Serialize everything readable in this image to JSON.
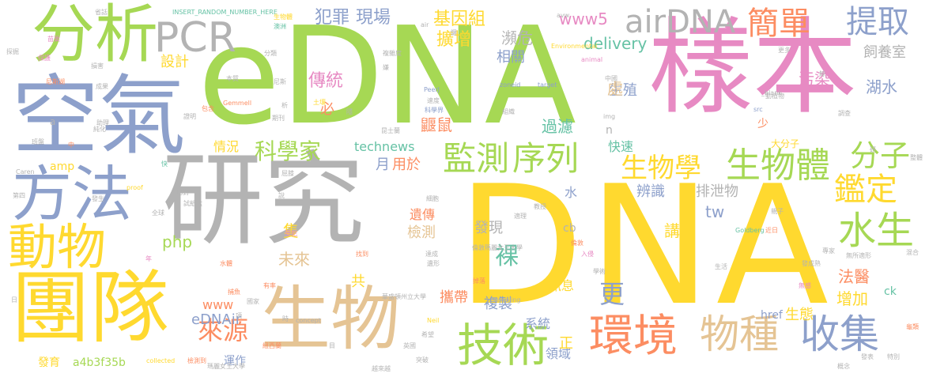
{
  "palette": {
    "green": "#a6d854",
    "pink": "#e78ac3",
    "blue": "#8da0cb",
    "orange": "#fc8d62",
    "teal": "#66c2a5",
    "yellow": "#ffd92f",
    "tan": "#e5c494",
    "gray": "#b3b3b3"
  },
  "words": [
    {
      "text": "DNA",
      "color": "yellow"
    },
    {
      "text": "eDNA",
      "color": "green"
    },
    {
      "text": "樣本",
      "color": "pink"
    },
    {
      "text": "研究",
      "color": "gray"
    },
    {
      "text": "空氣",
      "color": "blue"
    },
    {
      "text": "分析",
      "color": "green"
    },
    {
      "text": "方法",
      "color": "blue"
    },
    {
      "text": "團隊",
      "color": "yellow"
    },
    {
      "text": "生物",
      "color": "tan"
    },
    {
      "text": "動物",
      "color": "yellow"
    },
    {
      "text": "PCR",
      "color": "gray"
    },
    {
      "text": "技術",
      "color": "green"
    },
    {
      "text": "環境",
      "color": "orange"
    },
    {
      "text": "物種",
      "color": "tan"
    },
    {
      "text": "收集",
      "color": "blue"
    },
    {
      "text": "監測",
      "color": "green"
    },
    {
      "text": "序列",
      "color": "green"
    },
    {
      "text": "水生",
      "color": "green"
    },
    {
      "text": "生物體",
      "color": "green"
    },
    {
      "text": "airDNA",
      "color": "gray"
    },
    {
      "text": "簡單",
      "color": "orange"
    },
    {
      "text": "提取",
      "color": "blue"
    },
    {
      "text": "鑑定",
      "color": "yellow"
    },
    {
      "text": "分子",
      "color": "green"
    },
    {
      "text": "科學家",
      "color": "green"
    },
    {
      "text": "生物學",
      "color": "yellow"
    },
    {
      "text": "來源",
      "color": "orange"
    },
    {
      "text": "犯罪",
      "color": "blue"
    },
    {
      "text": "現場",
      "color": "blue"
    },
    {
      "text": "基因組",
      "color": "yellow"
    },
    {
      "text": "www5",
      "color": "pink"
    },
    {
      "text": "delivery",
      "color": "teal"
    },
    {
      "text": "飼養室",
      "color": "gray"
    },
    {
      "text": "湖水",
      "color": "blue"
    },
    {
      "text": "污染",
      "color": "pink"
    },
    {
      "text": "傳統",
      "color": "pink"
    },
    {
      "text": "擴增",
      "color": "yellow"
    },
    {
      "text": "瀕危",
      "color": "gray"
    },
    {
      "text": "相關",
      "color": "blue"
    },
    {
      "text": "設計",
      "color": "yellow"
    },
    {
      "text": "生殖",
      "color": "blue"
    },
    {
      "text": "過濾",
      "color": "teal"
    },
    {
      "text": "鼴鼠",
      "color": "orange"
    },
    {
      "text": "情況",
      "color": "yellow"
    },
    {
      "text": "technews",
      "color": "teal"
    },
    {
      "text": "快速",
      "color": "teal"
    },
    {
      "text": "用於",
      "color": "orange"
    },
    {
      "text": "月",
      "color": "blue"
    },
    {
      "text": "辨識",
      "color": "blue"
    },
    {
      "text": "排泄物",
      "color": "gray"
    },
    {
      "text": "php",
      "color": "green"
    },
    {
      "text": "tw",
      "color": "blue"
    },
    {
      "text": "遺傳",
      "color": "orange"
    },
    {
      "text": "檢測",
      "color": "tan"
    },
    {
      "text": "發現",
      "color": "gray"
    },
    {
      "text": "講",
      "color": "yellow"
    },
    {
      "text": "未來",
      "color": "tan"
    },
    {
      "text": "裸",
      "color": "teal"
    },
    {
      "text": "更",
      "color": "blue"
    },
    {
      "text": "法醫",
      "color": "orange"
    },
    {
      "text": "增加",
      "color": "yellow"
    },
    {
      "text": "生態",
      "color": "yellow"
    },
    {
      "text": "href",
      "color": "blue"
    },
    {
      "text": "ck",
      "color": "teal"
    },
    {
      "text": "www",
      "color": "orange"
    },
    {
      "text": "eDNAir",
      "color": "blue"
    },
    {
      "text": "攜帶",
      "color": "orange"
    },
    {
      "text": "複製",
      "color": "blue"
    },
    {
      "text": "系統",
      "color": "blue"
    },
    {
      "text": "訊息",
      "color": "yellow"
    },
    {
      "text": "領域",
      "color": "blue"
    },
    {
      "text": "運作",
      "color": "blue"
    },
    {
      "text": "發育",
      "color": "yellow"
    },
    {
      "text": "a4b3f35b",
      "color": "green"
    },
    {
      "text": "處",
      "color": "tan"
    },
    {
      "text": "水",
      "color": "blue"
    },
    {
      "text": "必",
      "color": "orange"
    },
    {
      "text": "隻",
      "color": "yellow"
    },
    {
      "text": "共",
      "color": "yellow"
    },
    {
      "text": "正",
      "color": "yellow"
    },
    {
      "text": "少",
      "color": "orange"
    },
    {
      "text": "n",
      "color": "gray"
    },
    {
      "text": "cb",
      "color": "gray"
    },
    {
      "text": "amp",
      "color": "yellow"
    },
    {
      "text": "大分子",
      "color": "yellow"
    },
    {
      "text": "INSERT_RANDOM_NUMBER_HERE",
      "color": "teal"
    },
    {
      "text": "avw",
      "color": "gray"
    },
    {
      "text": "Environmental",
      "color": "yellow"
    },
    {
      "text": "animal",
      "color": "pink"
    },
    {
      "text": "Gemmell",
      "color": "orange"
    },
    {
      "text": "PeerJ",
      "color": "blue"
    },
    {
      "text": "zoneid",
      "color": "blue"
    },
    {
      "text": "target",
      "color": "blue"
    },
    {
      "text": "img",
      "color": "gray"
    },
    {
      "text": "src",
      "color": "blue"
    },
    {
      "text": "_blank",
      "color": "gray"
    },
    {
      "text": "Goldberg",
      "color": "teal"
    },
    {
      "text": "proof",
      "color": "yellow"
    },
    {
      "text": "Caren",
      "color": "gray"
    },
    {
      "text": "sampling",
      "color": "gray"
    },
    {
      "text": "concept",
      "color": "gray"
    },
    {
      "text": "collected",
      "color": "yellow"
    },
    {
      "text": "Neil",
      "color": "yellow"
    },
    {
      "text": "a",
      "color": "gray"
    },
    {
      "text": "華盛頓州立大學",
      "color": "gray"
    },
    {
      "text": "倫敦瑪麗女王大學",
      "color": "gray"
    },
    {
      "text": "瑪麗女王大學",
      "color": "gray"
    },
    {
      "text": "昆士蘭",
      "color": "gray"
    },
    {
      "text": "紐西蘭",
      "color": "orange"
    },
    {
      "text": "越來越",
      "color": "gray"
    },
    {
      "text": "檢測到",
      "color": "orange"
    },
    {
      "text": "澳洲",
      "color": "teal"
    },
    {
      "text": "苗栗",
      "color": "pink"
    },
    {
      "text": "省話",
      "color": "gray"
    },
    {
      "text": "生物體",
      "color": "yellow"
    },
    {
      "text": "全球",
      "color": "gray"
    },
    {
      "text": "比對",
      "color": "gray"
    },
    {
      "text": "試紙盒",
      "color": "gray"
    },
    {
      "text": "助理",
      "color": "gray"
    },
    {
      "text": "罪犯",
      "color": "pink"
    },
    {
      "text": "水體",
      "color": "orange"
    },
    {
      "text": "有率",
      "color": "orange"
    },
    {
      "text": "國家",
      "color": "gray"
    },
    {
      "text": "找到",
      "color": "orange"
    },
    {
      "text": "達成",
      "color": "gray"
    },
    {
      "text": "遺形",
      "color": "gray"
    },
    {
      "text": "突破",
      "color": "gray"
    },
    {
      "text": "希望",
      "color": "gray"
    },
    {
      "text": "英國",
      "color": "gray"
    },
    {
      "text": "目",
      "color": "gray"
    },
    {
      "text": "時",
      "color": "gray"
    },
    {
      "text": "細胞",
      "color": "gray"
    },
    {
      "text": "屈膝",
      "color": "gray"
    },
    {
      "text": "說",
      "color": "gray"
    },
    {
      "text": "教授",
      "color": "gray"
    },
    {
      "text": "適理",
      "color": "gray"
    },
    {
      "text": "入侵",
      "color": "pink"
    },
    {
      "text": "倫敦",
      "color": "orange"
    },
    {
      "text": "學術",
      "color": "gray"
    },
    {
      "text": "生活",
      "color": "gray"
    },
    {
      "text": "無感",
      "color": "pink"
    },
    {
      "text": "專家",
      "color": "gray"
    },
    {
      "text": "發成熟",
      "color": "gray"
    },
    {
      "text": "無所適形",
      "color": "gray"
    },
    {
      "text": "親子",
      "color": "gray"
    },
    {
      "text": "近日",
      "color": "orange"
    },
    {
      "text": "動植物",
      "color": "gray"
    },
    {
      "text": "調查",
      "color": "gray"
    },
    {
      "text": "中國",
      "color": "gray"
    },
    {
      "text": "科學界",
      "color": "blue"
    },
    {
      "text": "成果",
      "color": "gray"
    },
    {
      "text": "本質",
      "color": "gray"
    },
    {
      "text": "尼斯",
      "color": "gray"
    },
    {
      "text": "尼斯湖",
      "color": "orange"
    },
    {
      "text": "保護",
      "color": "pink"
    },
    {
      "text": "損害",
      "color": "gray"
    },
    {
      "text": "班盤",
      "color": "gray"
    },
    {
      "text": "證明",
      "color": "gray"
    },
    {
      "text": "期刊",
      "color": "gray"
    },
    {
      "text": "包含",
      "color": "orange"
    },
    {
      "text": "土壤",
      "color": "yellow"
    },
    {
      "text": "複雜度",
      "color": "gray"
    },
    {
      "text": "分類",
      "color": "gray"
    },
    {
      "text": "組織",
      "color": "gray"
    },
    {
      "text": "速度",
      "color": "gray"
    },
    {
      "text": "更多",
      "color": "gray"
    },
    {
      "text": "發表",
      "color": "gray"
    },
    {
      "text": "概念",
      "color": "gray"
    },
    {
      "text": "特別",
      "color": "gray"
    },
    {
      "text": "整體",
      "color": "gray"
    },
    {
      "text": "龜類",
      "color": "orange"
    },
    {
      "text": "混合",
      "color": "gray"
    },
    {
      "text": "捕魚",
      "color": "orange"
    },
    {
      "text": "掉落",
      "color": "orange"
    },
    {
      "text": "發生",
      "color": "gray"
    },
    {
      "text": "第四",
      "color": "gray"
    },
    {
      "text": "探掘",
      "color": "gray"
    },
    {
      "text": "純化",
      "color": "gray"
    },
    {
      "text": "研",
      "color": "gray"
    },
    {
      "text": "日",
      "color": "gray"
    },
    {
      "text": "中",
      "color": "orange"
    },
    {
      "text": "鍵",
      "color": "gray"
    },
    {
      "text": "項",
      "color": "gray"
    },
    {
      "text": "快",
      "color": "teal"
    },
    {
      "text": "年",
      "color": "pink"
    },
    {
      "text": "鯨",
      "color": "gray"
    },
    {
      "text": "析",
      "color": "gray"
    },
    {
      "text": "air",
      "color": "gray"
    },
    {
      "text": "隱",
      "color": "gray"
    },
    {
      "text": "嫌",
      "color": "gray"
    },
    {
      "text": "魚",
      "color": "gray"
    }
  ]
}
